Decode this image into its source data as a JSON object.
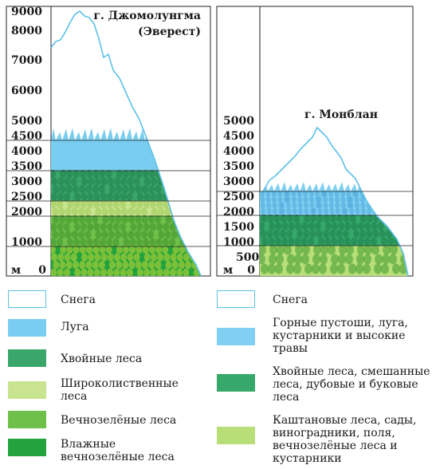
{
  "everest": {
    "title_line1": "г. Джомолунгма",
    "title_line2": "(Эверест)",
    "unit_label": "м",
    "ticks": [
      "9000",
      "8000",
      "7000",
      "6000",
      "5000",
      "4500",
      "4000",
      "3500",
      "3000",
      "2500",
      "2000",
      "1000",
      "0"
    ]
  },
  "montblanc": {
    "title": "г. Монблан",
    "unit_label": "м",
    "ticks": [
      "5000",
      "4500",
      "4000",
      "3500",
      "3000",
      "2500",
      "2000",
      "1500",
      "1000",
      "500",
      "0"
    ]
  },
  "legend_left": [
    {
      "label": "Снега",
      "color": "#ffffff"
    },
    {
      "label": "Луга",
      "color": "#79cdf0"
    },
    {
      "label": "Хвойные леса",
      "color": "#3aa66a"
    },
    {
      "label": "Широколиственные леса",
      "color": "#c9e48e"
    },
    {
      "label": "Вечнозелёные леса",
      "color": "#6ec04a"
    },
    {
      "label": "Влажные вечнозелёные леса",
      "color": "#22a33b"
    }
  ],
  "legend_right": [
    {
      "label": "Снега",
      "color": "#ffffff"
    },
    {
      "label": "Горные пустоши, луга, кустарники и высокие травы",
      "color": "#7fd0f2"
    },
    {
      "label": "Хвойные леса, смешанные леса, дубовые и буковые леса",
      "color": "#36a86a"
    },
    {
      "label": "Каштановые леса, сады, виноградники, поля, вечнозелёные леса и кустарники",
      "color": "#b8de78"
    }
  ],
  "colors": {
    "snow_outline": "#5cc0e8",
    "meadow": "#79cdf0",
    "conifer": "#3aa66a",
    "broadleaf": "#c9e48e",
    "evergreen": "#6ec04a",
    "humid_evergreen": "#22a33b",
    "alpine": "#7fd0f2",
    "mixed": "#36a86a",
    "chestnut": "#b8de78"
  }
}
